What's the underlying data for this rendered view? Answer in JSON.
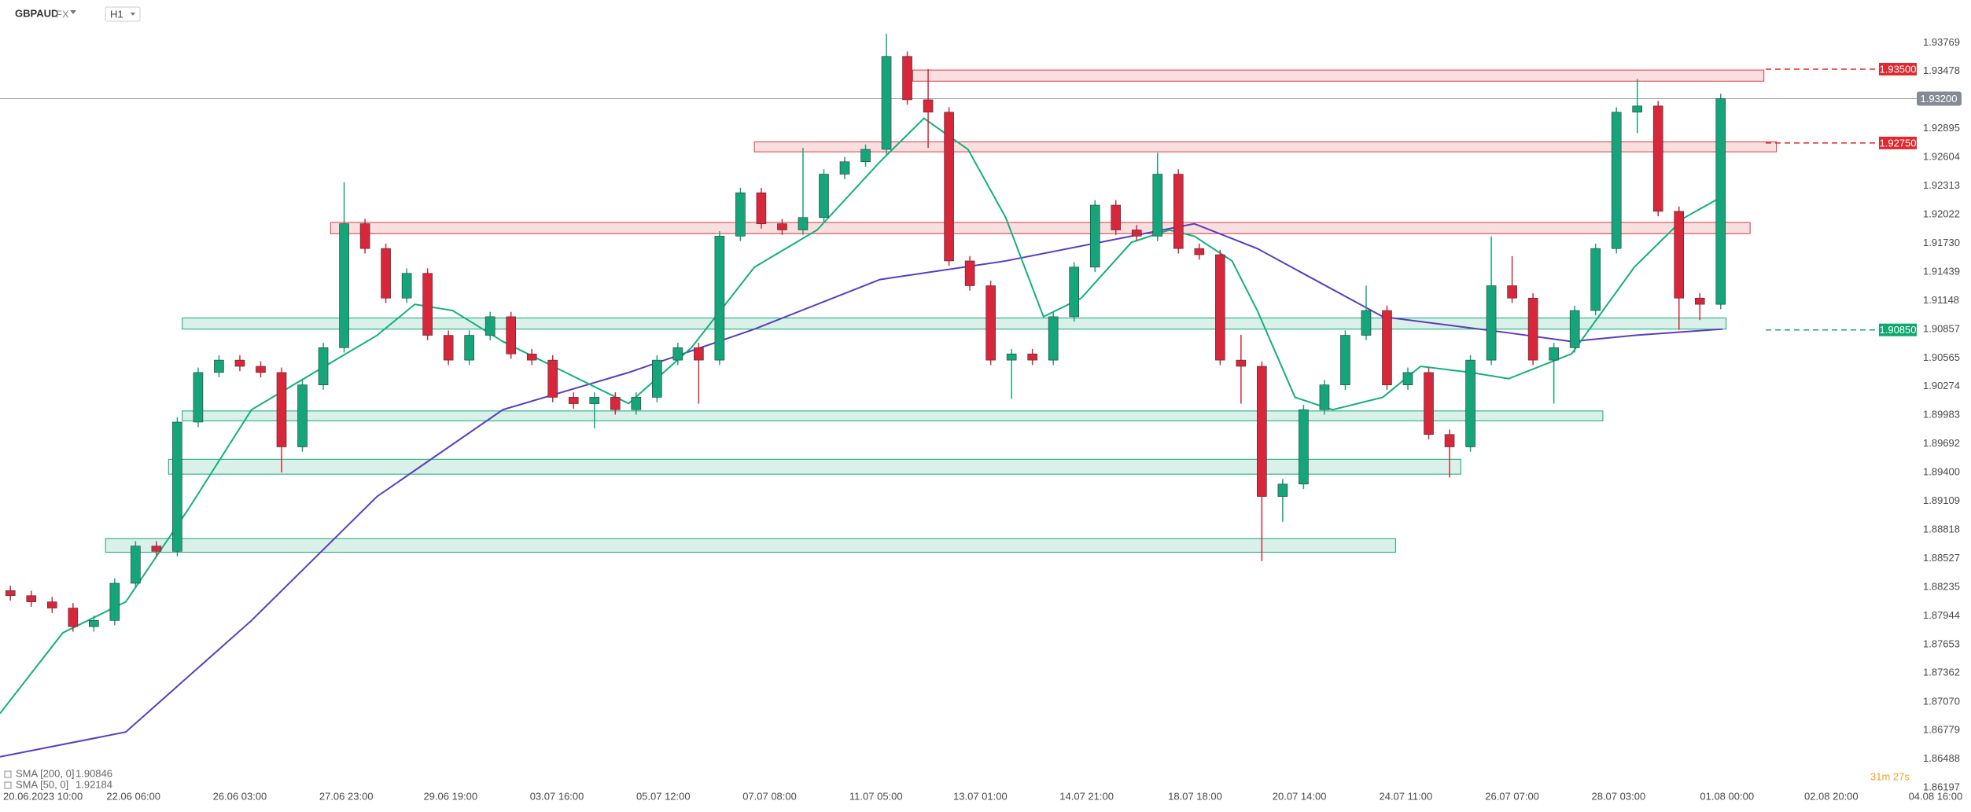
{
  "chart_data": {
    "type": "candlestick",
    "symbol": "GBPAUD",
    "market": "FX",
    "timeframe": "H1",
    "countdown": "31m 27s",
    "up_color": "#14a67a",
    "down_color": "#d8263a",
    "grid": false,
    "xlim": [
      0,
      94.5
    ],
    "ylim": [
      1.8603,
      1.94203
    ],
    "xticks": [
      {
        "value": 1.3,
        "label": "20.06.2023 10:00"
      },
      {
        "value": 6.4,
        "label": "22.06 06:00"
      },
      {
        "value": 11.5,
        "label": "26.06 03:00"
      },
      {
        "value": 16.6,
        "label": "27.06 23:00"
      },
      {
        "value": 21.6,
        "label": "29.06 19:00"
      },
      {
        "value": 26.7,
        "label": "03.07 16:00"
      },
      {
        "value": 31.8,
        "label": "05.07 12:00"
      },
      {
        "value": 36.9,
        "label": "07.07 08:00"
      },
      {
        "value": 42.0,
        "label": "11.07 05:00"
      },
      {
        "value": 47.0,
        "label": "13.07 01:00"
      },
      {
        "value": 52.1,
        "label": "14.07 21:00"
      },
      {
        "value": 57.3,
        "label": "18.07 18:00"
      },
      {
        "value": 62.3,
        "label": "20.07 14:00"
      },
      {
        "value": 67.4,
        "label": "24.07 11:00"
      },
      {
        "value": 72.5,
        "label": "26.07 07:00"
      },
      {
        "value": 77.6,
        "label": "28.07 03:00"
      },
      {
        "value": 82.8,
        "label": "01.08 00:00"
      },
      {
        "value": 87.8,
        "label": "02.08 20:00"
      },
      {
        "value": 92.8,
        "label": "04.08 16:00"
      }
    ],
    "yticks": [
      1.93769,
      1.93478,
      1.92895,
      1.92604,
      1.92313,
      1.92022,
      {
        "value": 1.9173,
        "label": "1.91730"
      },
      1.91439,
      1.91148,
      1.90857,
      1.90565,
      1.90274,
      1.89983,
      1.89692,
      {
        "value": 1.894,
        "label": "1.89400"
      },
      1.89109,
      1.88818,
      1.88527,
      1.88235,
      1.87944,
      1.87653,
      1.87362,
      {
        "value": 1.8707,
        "label": "1.87070"
      },
      1.86779,
      1.86488,
      1.86197
    ],
    "open": [
      1.882,
      1.88149,
      1.88086,
      1.88023,
      1.87834,
      1.87897,
      1.88275,
      1.88653,
      1.886,
      1.89913,
      1.90417,
      1.90543,
      1.9048,
      1.90417,
      1.89661,
      1.90291,
      1.90669,
      1.91929,
      1.91677,
      1.91173,
      1.91425,
      1.90795,
      1.90543,
      1.90795,
      1.90984,
      1.90606,
      1.90543,
      1.90165,
      1.901,
      1.90165,
      1.90039,
      1.90165,
      1.90543,
      1.90669,
      1.90543,
      1.91803,
      1.92244,
      1.91929,
      1.91866,
      1.91992,
      1.92433,
      1.92559,
      1.92685,
      1.9363,
      1.93189,
      1.93063,
      1.91551,
      1.91299,
      1.90543,
      1.90606,
      1.90543,
      1.90984,
      1.91488,
      1.92118,
      1.91866,
      1.91803,
      1.92433,
      1.91677,
      1.91614,
      1.90543,
      1.9048,
      1.89157,
      1.89283,
      1.90039,
      1.90291,
      1.90795,
      1.91047,
      1.90291,
      1.90417,
      1.89787,
      1.89661,
      1.90543,
      1.91299,
      1.91173,
      1.90543,
      1.90669,
      1.91047,
      1.91677,
      1.93063,
      1.93126,
      1.92055,
      1.91173,
      1.9111
    ],
    "high": [
      1.8825,
      1.88199,
      1.88136,
      1.88073,
      1.87947,
      1.88325,
      1.88703,
      1.88703,
      1.89963,
      1.90467,
      1.90593,
      1.90593,
      1.9053,
      1.90467,
      1.90341,
      1.90719,
      1.9235,
      1.91979,
      1.91727,
      1.91475,
      1.91475,
      1.90845,
      1.90845,
      1.91034,
      1.91034,
      1.90656,
      1.90593,
      1.90215,
      1.90215,
      1.90215,
      1.90215,
      1.90593,
      1.90719,
      1.90719,
      1.91853,
      1.92294,
      1.92294,
      1.91979,
      1.927,
      1.92483,
      1.92609,
      1.92735,
      1.9386,
      1.9368,
      1.935,
      1.93113,
      1.91601,
      1.91349,
      1.90656,
      1.90656,
      1.91034,
      1.91538,
      1.92168,
      1.92168,
      1.91916,
      1.9265,
      1.92483,
      1.91727,
      1.91664,
      1.908,
      1.9053,
      1.89333,
      1.90089,
      1.90341,
      1.90845,
      1.913,
      1.91097,
      1.90467,
      1.90467,
      1.89837,
      1.90593,
      1.918,
      1.916,
      1.91223,
      1.90719,
      1.91097,
      1.91727,
      1.93113,
      1.934,
      1.93176,
      1.92105,
      1.91223,
      1.9325
    ],
    "low": [
      1.88099,
      1.88036,
      1.87973,
      1.87784,
      1.87784,
      1.87847,
      1.88225,
      1.8855,
      1.8855,
      1.89863,
      1.90367,
      1.9043,
      1.90367,
      1.894,
      1.89611,
      1.90241,
      1.90619,
      1.91627,
      1.91123,
      1.91123,
      1.90745,
      1.90493,
      1.90493,
      1.90745,
      1.90556,
      1.90493,
      1.90115,
      1.9005,
      1.8985,
      1.89989,
      1.89989,
      1.90115,
      1.90493,
      1.901,
      1.90493,
      1.91753,
      1.91879,
      1.91816,
      1.91816,
      1.91942,
      1.92383,
      1.92509,
      1.92635,
      1.93139,
      1.927,
      1.91501,
      1.91249,
      1.90493,
      1.9015,
      1.90493,
      1.90493,
      1.90934,
      1.91438,
      1.91816,
      1.91753,
      1.91753,
      1.91627,
      1.91564,
      1.90493,
      1.901,
      1.885,
      1.889,
      1.89233,
      1.89989,
      1.90241,
      1.90745,
      1.90241,
      1.90241,
      1.89737,
      1.8935,
      1.89611,
      1.90493,
      1.91123,
      1.90493,
      1.901,
      1.90619,
      1.90997,
      1.91627,
      1.9285,
      1.92005,
      1.9085,
      1.9095,
      1.9106
    ],
    "close": [
      1.88149,
      1.88086,
      1.88023,
      1.87834,
      1.87897,
      1.88275,
      1.88653,
      1.886,
      1.89913,
      1.90417,
      1.90543,
      1.9048,
      1.90417,
      1.89661,
      1.90291,
      1.90669,
      1.91929,
      1.91677,
      1.91173,
      1.91425,
      1.90795,
      1.90543,
      1.90795,
      1.90984,
      1.90606,
      1.90543,
      1.90165,
      1.901,
      1.90165,
      1.90039,
      1.90165,
      1.90543,
      1.90669,
      1.90543,
      1.91803,
      1.92244,
      1.91929,
      1.91866,
      1.91992,
      1.92433,
      1.92559,
      1.92685,
      1.9363,
      1.93189,
      1.93063,
      1.91551,
      1.91299,
      1.90543,
      1.90606,
      1.90543,
      1.90984,
      1.91488,
      1.92118,
      1.91866,
      1.91803,
      1.92433,
      1.91677,
      1.91614,
      1.90543,
      1.9048,
      1.89157,
      1.89283,
      1.90039,
      1.90291,
      1.90795,
      1.91047,
      1.90291,
      1.90417,
      1.89787,
      1.89661,
      1.90543,
      1.91299,
      1.91173,
      1.90543,
      1.90669,
      1.91047,
      1.91677,
      1.93063,
      1.93126,
      1.92055,
      1.91173,
      1.9111,
      1.932
    ],
    "indicators": [
      {
        "name": "SMA [200, 0]",
        "last": 1.90846,
        "color": "#5a3cc2",
        "x": [
          0,
          6.03,
          12.06,
          18.08,
          24.11,
          30.14,
          36.17,
          42.19,
          48.22,
          54.25,
          57.26,
          60.28,
          66.3,
          72.33,
          75.35,
          78.36,
          82.58
        ],
        "values": [
          1.86511,
          1.86763,
          1.87897,
          1.89157,
          1.90039,
          1.90417,
          1.90858,
          1.91362,
          1.91551,
          1.91803,
          1.91929,
          1.91677,
          1.90984,
          1.9082,
          1.90732,
          1.90795,
          1.90858
        ]
      },
      {
        "name": "SMA [50, 0]",
        "last": 1.92184,
        "color": "#12b07e",
        "x": [
          0,
          3.01,
          6.03,
          9.04,
          12.06,
          15.07,
          18.08,
          19.89,
          21.7,
          24.11,
          27.12,
          30.14,
          33.15,
          36.17,
          39.18,
          42.19,
          44.3,
          46.41,
          48.22,
          50.03,
          51.84,
          54.25,
          56.06,
          57.26,
          59.07,
          60.28,
          62.09,
          63.89,
          66.3,
          68.11,
          70.52,
          72.33,
          75.35,
          78.36,
          80.77,
          82.58
        ],
        "values": [
          1.86952,
          1.87771,
          1.88086,
          1.89031,
          1.90039,
          1.90417,
          1.90795,
          1.9111,
          1.91047,
          1.90732,
          1.90417,
          1.90102,
          1.90669,
          1.91488,
          1.91866,
          1.92559,
          1.93,
          1.92685,
          1.91992,
          1.90984,
          1.91173,
          1.9174,
          1.91866,
          1.91803,
          1.91551,
          1.91047,
          1.90165,
          1.90039,
          1.90165,
          1.9048,
          1.90417,
          1.90354,
          1.90606,
          1.91488,
          1.91992,
          1.92206
        ]
      }
    ],
    "zones": [
      {
        "color": "#e0393e",
        "x1": 43.76,
        "x2": 84.57,
        "top": 1.93491,
        "bottom": 1.93378
      },
      {
        "color": "#e0393e",
        "x1": 36.17,
        "x2": 85.17,
        "top": 1.92761,
        "bottom": 1.9266
      },
      {
        "color": "#e0393e",
        "x1": 15.85,
        "x2": 83.91,
        "top": 1.91942,
        "bottom": 1.91828
      },
      {
        "color": "#12a877",
        "x1": 8.74,
        "x2": 82.76,
        "top": 1.90971,
        "bottom": 1.90858
      },
      {
        "color": "#12a877",
        "x1": 8.74,
        "x2": 76.85,
        "top": 1.90026,
        "bottom": 1.89926
      },
      {
        "color": "#12a877",
        "x1": 8.08,
        "x2": 70.04,
        "top": 1.89535,
        "bottom": 1.89384
      },
      {
        "color": "#12a877",
        "x1": 5.06,
        "x2": 66.91,
        "top": 1.88729,
        "bottom": 1.8859
      }
    ],
    "levels": [
      {
        "value": 1.935,
        "label": "1.93500",
        "color": "#e0282e"
      },
      {
        "value": 1.9275,
        "label": "1.92750",
        "color": "#e0282e"
      },
      {
        "value": 1.9085,
        "label": "1.90850",
        "color": "#0fa86f"
      }
    ],
    "current_price": {
      "value": 1.932,
      "label": "1.93200",
      "color": "#868b93"
    }
  }
}
